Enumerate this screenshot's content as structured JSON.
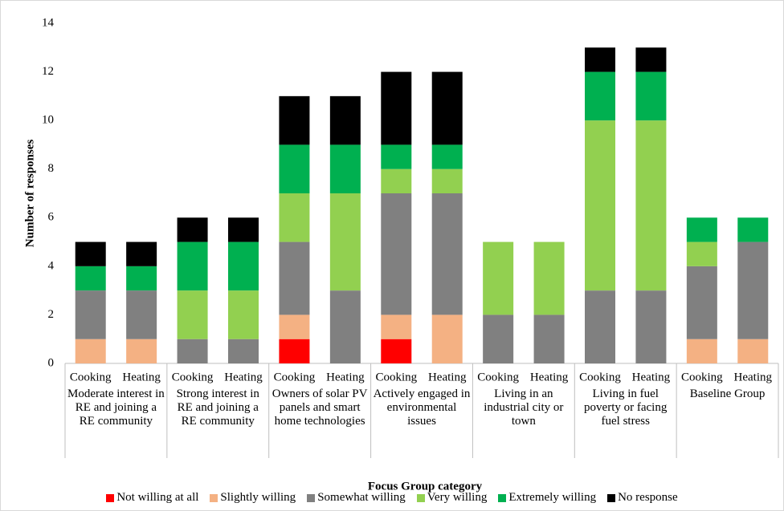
{
  "chart_data": {
    "type": "stacked_bar",
    "x_label": "Focus Group category",
    "y_label": "Number of responses",
    "categories": [
      "Cooking",
      "Heating",
      "Cooking",
      "Heating",
      "Cooking",
      "Heating",
      "Cooking",
      "Heating",
      "Cooking",
      "Heating",
      "Cooking",
      "Heating",
      "Cooking",
      "Heating"
    ],
    "groups": [
      "Moderate interest in RE and joining a RE community",
      "Strong interest in RE and joining a RE community",
      "Owners of solar PV panels and smart home technologies",
      "Actively engaged in environmental issues",
      "Living in an industrial city or town",
      "Living in fuel poverty or facing fuel stress",
      "Baseline Group"
    ],
    "series": [
      {
        "name": "Not willing at all",
        "color": "#ff0000",
        "values": [
          0,
          0,
          0,
          0,
          1,
          0,
          1,
          0,
          0,
          0,
          0,
          0,
          0,
          0
        ]
      },
      {
        "name": "Slightly willing",
        "color": "#f4b183",
        "values": [
          1,
          1,
          0,
          0,
          1,
          0,
          1,
          2,
          0,
          0,
          0,
          0,
          1,
          1
        ]
      },
      {
        "name": "Somewhat willing",
        "color": "#808080",
        "values": [
          2,
          2,
          1,
          1,
          3,
          3,
          5,
          5,
          2,
          2,
          3,
          3,
          3,
          4
        ]
      },
      {
        "name": "Very willing",
        "color": "#92d050",
        "values": [
          0,
          0,
          2,
          2,
          2,
          4,
          1,
          1,
          3,
          3,
          7,
          7,
          1,
          0
        ]
      },
      {
        "name": "Extremely willing",
        "color": "#00b050",
        "values": [
          1,
          1,
          2,
          2,
          2,
          2,
          1,
          1,
          0,
          0,
          2,
          2,
          1,
          1
        ]
      },
      {
        "name": "No response",
        "color": "#000000",
        "values": [
          1,
          1,
          1,
          1,
          2,
          2,
          3,
          3,
          0,
          0,
          1,
          1,
          0,
          0
        ]
      }
    ],
    "ylim": [
      0,
      14
    ],
    "yticks": [
      0,
      2,
      4,
      6,
      8,
      10,
      12,
      14
    ],
    "grid": false,
    "legend": "bottom"
  }
}
